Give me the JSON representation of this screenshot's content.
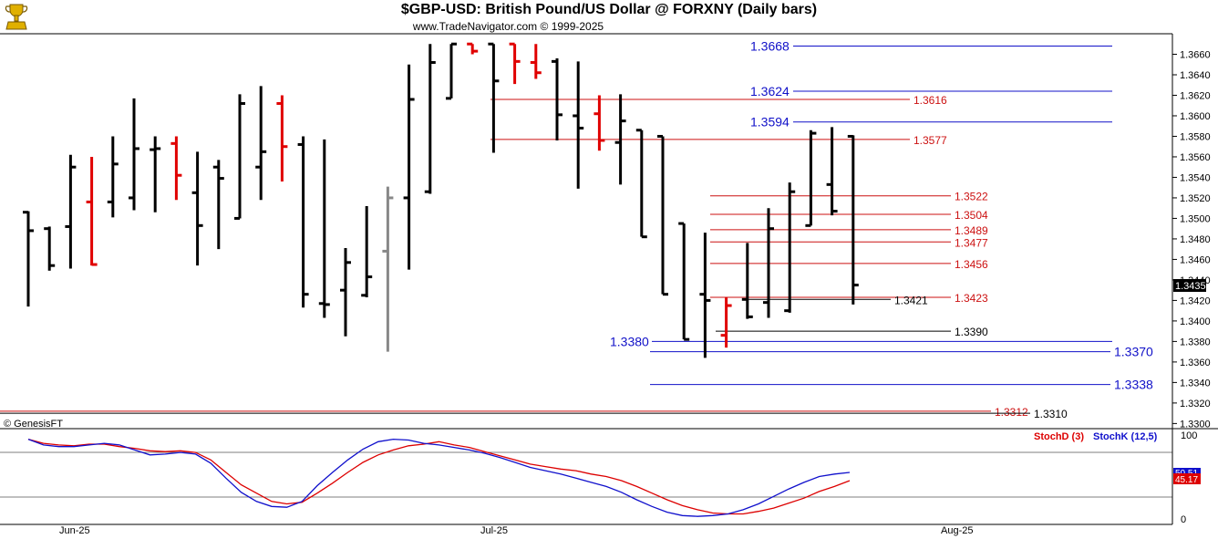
{
  "header": {
    "title": "$GBP-USD:  British Pound/US Dollar @ FORXNY  (Daily bars)",
    "subtitle": "www.TradeNavigator.com © 1999-2025",
    "watermark": "© GenesisFT"
  },
  "colors": {
    "up_bar": "#000000",
    "down_bar": "#e00000",
    "neutral_bar": "#888888",
    "blue_level": "#1010c8",
    "red_level": "#cc1111",
    "stoch_d": "#dd0000",
    "stoch_k": "#1010cc",
    "price_tag_bg": "#000000"
  },
  "chart_data": [
    {
      "type": "ohlc",
      "title": "$GBP-USD:  British Pound/US Dollar @ FORXNY  (Daily bars)",
      "x_labels": [
        "Jun-25",
        "Jul-25",
        "Aug-25"
      ],
      "y_ticks": [
        "1.3300",
        "1.3320",
        "1.3340",
        "1.3360",
        "1.3380",
        "1.3400",
        "1.3420",
        "1.3440",
        "1.3460",
        "1.3480",
        "1.3500",
        "1.3520",
        "1.3540",
        "1.3560",
        "1.3580",
        "1.3600",
        "1.3620",
        "1.3640",
        "1.3660"
      ],
      "ylim": [
        1.3295,
        1.368
      ],
      "last_price": "1.3435",
      "bars": [
        {
          "h": 1.3507,
          "l": 1.3414,
          "o": 1.3506,
          "c": 1.3488,
          "col": "k"
        },
        {
          "h": 1.3492,
          "l": 1.3449,
          "o": 1.349,
          "c": 1.3454,
          "col": "k"
        },
        {
          "h": 1.3562,
          "l": 1.3451,
          "o": 1.3492,
          "c": 1.355,
          "col": "k"
        },
        {
          "h": 1.356,
          "l": 1.3454,
          "o": 1.3516,
          "c": 1.3455,
          "col": "r"
        },
        {
          "h": 1.358,
          "l": 1.3501,
          "o": 1.3516,
          "c": 1.3553,
          "col": "k"
        },
        {
          "h": 1.3617,
          "l": 1.3508,
          "o": 1.352,
          "c": 1.3568,
          "col": "k"
        },
        {
          "h": 1.358,
          "l": 1.3506,
          "o": 1.3567,
          "c": 1.3568,
          "col": "k"
        },
        {
          "h": 1.358,
          "l": 1.3518,
          "o": 1.3573,
          "c": 1.3542,
          "col": "r"
        },
        {
          "h": 1.3565,
          "l": 1.3454,
          "o": 1.3525,
          "c": 1.3493,
          "col": "k"
        },
        {
          "h": 1.3557,
          "l": 1.347,
          "o": 1.355,
          "c": 1.3539,
          "col": "k"
        },
        {
          "h": 1.3621,
          "l": 1.35,
          "o": 1.35,
          "c": 1.3612,
          "col": "k"
        },
        {
          "h": 1.3629,
          "l": 1.3518,
          "o": 1.355,
          "c": 1.3565,
          "col": "k"
        },
        {
          "h": 1.362,
          "l": 1.3536,
          "o": 1.3612,
          "c": 1.357,
          "col": "r"
        },
        {
          "h": 1.358,
          "l": 1.3413,
          "o": 1.3572,
          "c": 1.3426,
          "col": "k"
        },
        {
          "h": 1.3577,
          "l": 1.3403,
          "o": 1.3417,
          "c": 1.3416,
          "col": "k"
        },
        {
          "h": 1.3471,
          "l": 1.3385,
          "o": 1.343,
          "c": 1.3457,
          "col": "k"
        },
        {
          "h": 1.3512,
          "l": 1.3423,
          "o": 1.3425,
          "c": 1.3443,
          "col": "k"
        },
        {
          "h": 1.3531,
          "l": 1.337,
          "o": 1.3468,
          "c": 1.352,
          "col": "g"
        },
        {
          "h": 1.365,
          "l": 1.345,
          "o": 1.352,
          "c": 1.3616,
          "col": "k"
        },
        {
          "h": 1.367,
          "l": 1.3524,
          "o": 1.3526,
          "c": 1.3652,
          "col": "k"
        },
        {
          "h": 1.367,
          "l": 1.3617,
          "o": 1.3617,
          "c": 1.367,
          "col": "k"
        },
        {
          "h": 1.367,
          "l": 1.366,
          "o": 1.367,
          "c": 1.3663,
          "col": "r"
        },
        {
          "h": 1.367,
          "l": 1.3564,
          "o": 1.367,
          "c": 1.3634,
          "col": "k"
        },
        {
          "h": 1.367,
          "l": 1.3631,
          "o": 1.367,
          "c": 1.3653,
          "col": "r"
        },
        {
          "h": 1.367,
          "l": 1.3636,
          "o": 1.3652,
          "c": 1.3642,
          "col": "r"
        },
        {
          "h": 1.3656,
          "l": 1.3576,
          "o": 1.3653,
          "c": 1.3601,
          "col": "k"
        },
        {
          "h": 1.3653,
          "l": 1.3529,
          "o": 1.36,
          "c": 1.3588,
          "col": "k"
        },
        {
          "h": 1.362,
          "l": 1.3566,
          "o": 1.3602,
          "c": 1.3576,
          "col": "r"
        },
        {
          "h": 1.3621,
          "l": 1.3533,
          "o": 1.3574,
          "c": 1.3595,
          "col": "k"
        },
        {
          "h": 1.3586,
          "l": 1.3482,
          "o": 1.3586,
          "c": 1.3482,
          "col": "k"
        },
        {
          "h": 1.358,
          "l": 1.3426,
          "o": 1.358,
          "c": 1.3426,
          "col": "k"
        },
        {
          "h": 1.3495,
          "l": 1.3382,
          "o": 1.3495,
          "c": 1.3382,
          "col": "k"
        },
        {
          "h": 1.3486,
          "l": 1.3364,
          "o": 1.3426,
          "c": 1.342,
          "col": "k"
        },
        {
          "h": 1.3423,
          "l": 1.3374,
          "o": 1.3386,
          "c": 1.3415,
          "col": "r"
        },
        {
          "h": 1.3476,
          "l": 1.3402,
          "o": 1.3421,
          "c": 1.3404,
          "col": "k"
        },
        {
          "h": 1.351,
          "l": 1.3403,
          "o": 1.3418,
          "c": 1.349,
          "col": "k"
        },
        {
          "h": 1.3535,
          "l": 1.3408,
          "o": 1.341,
          "c": 1.3526,
          "col": "k"
        },
        {
          "h": 1.3586,
          "l": 1.3493,
          "o": 1.3493,
          "c": 1.3583,
          "col": "k"
        },
        {
          "h": 1.3589,
          "l": 1.3503,
          "o": 1.3533,
          "c": 1.3507,
          "col": "k"
        },
        {
          "h": 1.3581,
          "l": 1.3416,
          "o": 1.358,
          "c": 1.3435,
          "col": "k"
        }
      ],
      "levels": [
        {
          "value": 1.3668,
          "label": "1.3668",
          "color": "blue"
        },
        {
          "value": 1.3624,
          "label": "1.3624",
          "color": "blue"
        },
        {
          "value": 1.3594,
          "label": "1.3594",
          "color": "blue"
        },
        {
          "value": 1.338,
          "label": "1.3380",
          "color": "blue"
        },
        {
          "value": 1.337,
          "label": "1.3370",
          "color": "blue"
        },
        {
          "value": 1.3338,
          "label": "1.3338",
          "color": "blue"
        },
        {
          "value": 1.3616,
          "label": "1.3616",
          "color": "red"
        },
        {
          "value": 1.3577,
          "label": "1.3577",
          "color": "red"
        },
        {
          "value": 1.3522,
          "label": "1.3522",
          "color": "red"
        },
        {
          "value": 1.3504,
          "label": "1.3504",
          "color": "red"
        },
        {
          "value": 1.3489,
          "label": "1.3489",
          "color": "red"
        },
        {
          "value": 1.3477,
          "label": "1.3477",
          "color": "red"
        },
        {
          "value": 1.3456,
          "label": "1.3456",
          "color": "red"
        },
        {
          "value": 1.3423,
          "label": "1.3423",
          "color": "red"
        },
        {
          "value": 1.3312,
          "label": "1.3312",
          "color": "red"
        },
        {
          "value": 1.3421,
          "label": "1.3421",
          "color": "black"
        },
        {
          "value": 1.339,
          "label": "1.3390",
          "color": "black"
        },
        {
          "value": 1.331,
          "label": "1.3310",
          "color": "black"
        }
      ]
    },
    {
      "type": "line",
      "series": [
        {
          "name": "StochD (3)",
          "color": "red",
          "values": [
            95,
            90,
            88,
            87,
            89,
            89,
            86,
            84,
            81,
            80,
            81,
            79,
            70,
            55,
            40,
            30,
            20,
            17,
            19,
            30,
            42,
            55,
            67,
            76,
            82,
            87,
            89,
            92,
            88,
            85,
            80,
            75,
            70,
            65,
            62,
            59,
            57,
            53,
            50,
            45,
            38,
            30,
            22,
            15,
            10,
            6,
            5,
            5,
            8,
            12,
            18,
            24,
            32,
            38,
            45
          ]
        },
        {
          "name": "StochK (12,5)",
          "color": "blue",
          "values": [
            95,
            88,
            86,
            86,
            88,
            90,
            88,
            82,
            76,
            77,
            79,
            77,
            66,
            48,
            31,
            20,
            14,
            13,
            20,
            39,
            55,
            70,
            83,
            92,
            95,
            94,
            90,
            88,
            85,
            82,
            78,
            73,
            67,
            61,
            57,
            53,
            48,
            43,
            38,
            31,
            22,
            14,
            7,
            3,
            2,
            3,
            5,
            10,
            17,
            26,
            35,
            43,
            50,
            53,
            55
          ]
        }
      ],
      "legend": [
        "StochD (3)",
        "StochK (12,5)"
      ],
      "ylim": [
        0,
        100
      ],
      "y_ticks": [
        "100",
        "0"
      ],
      "value_tags": [
        "50.51",
        "45.17"
      ]
    }
  ]
}
